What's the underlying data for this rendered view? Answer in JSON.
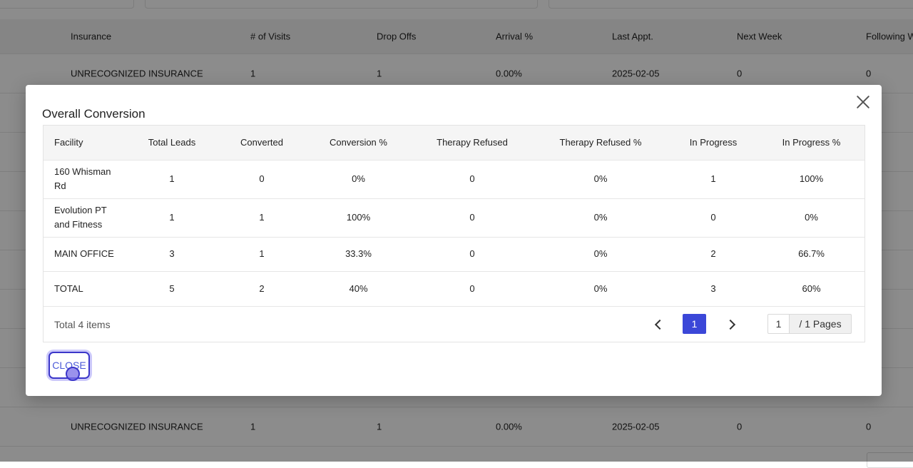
{
  "background_table": {
    "headers": [
      "Insurance",
      "# of Visits",
      "Drop Offs",
      "Arrival %",
      "Last Appt.",
      "Next Week",
      "Following W"
    ],
    "rows": [
      [
        "UNRECOGNIZED INSURANCE",
        "1",
        "1",
        "0.00%",
        "2025-02-05",
        "0",
        "0"
      ],
      [
        "UNRECOGNIZED INSURANCE",
        "1",
        "1",
        "0.00%",
        "2025-02-05",
        "0",
        "0"
      ]
    ]
  },
  "modal": {
    "title": "Overall Conversion",
    "columns": [
      "Facility",
      "Total Leads",
      "Converted",
      "Conversion %",
      "Therapy Refused",
      "Therapy Refused %",
      "In Progress",
      "In Progress %"
    ],
    "rows": [
      [
        "160 Whisman Rd",
        "1",
        "0",
        "0%",
        "0",
        "0%",
        "1",
        "100%"
      ],
      [
        "Evolution PT and Fitness",
        "1",
        "1",
        "100%",
        "0",
        "0%",
        "0",
        "0%"
      ],
      [
        "MAIN OFFICE",
        "3",
        "1",
        "33.3%",
        "0",
        "0%",
        "2",
        "66.7%"
      ],
      [
        "TOTAL",
        "5",
        "2",
        "40%",
        "0",
        "0%",
        "3",
        "60%"
      ]
    ],
    "footer": {
      "total_items": "Total 4 items",
      "current_page": "1",
      "jump_value": "1",
      "pages_label": "/ 1 Pages"
    },
    "close_label": "CLOSE"
  },
  "colors": {
    "accent": "#3b47d8",
    "overlay": "rgba(0,0,0,0.45)",
    "close_button_border": "#3b36c9"
  },
  "icons": {
    "close": "close-icon",
    "prev": "chevron-left-icon",
    "next": "chevron-right-icon"
  }
}
